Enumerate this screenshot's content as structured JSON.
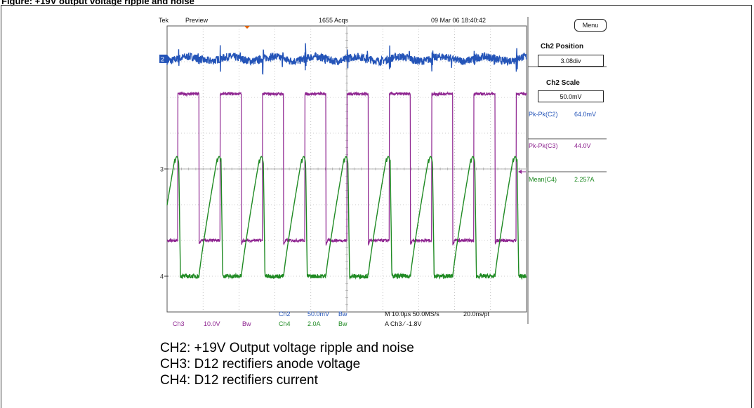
{
  "figure_title": "Figure: +19V output voltage ripple and noise",
  "header": {
    "brand": "Tek",
    "mode": "Preview",
    "acqs": "1655 Acqs",
    "datetime": "09 Mar 06 18:40:42"
  },
  "side_panel": {
    "menu_label": "Menu",
    "position_title": "Ch2 Position",
    "position_value": "3.08div",
    "scale_title": "Ch2 Scale",
    "scale_value": "50.0mV",
    "measurements": [
      {
        "label": "Pk-Pk(C2)",
        "value": "64.0mV"
      },
      {
        "label": "Pk-Pk(C3)",
        "value": "44.0V"
      },
      {
        "label": "Mean(C4)",
        "value": "2.257A"
      }
    ]
  },
  "bottom": {
    "ch3_name": "Ch3",
    "ch3_scale": "10.0V",
    "ch3_bw": "Bw",
    "ch2_name": "Ch2",
    "ch2_scale": "50.0mV",
    "ch2_bw": "Bw",
    "ch4_name": "Ch4",
    "ch4_scale": "2.0A",
    "ch4_bw": "Bw",
    "timebase": "M 10.0µs 50.0MS/s",
    "record": "20.0ns/pt",
    "trigger": "A  Ch3  ⁄  -1.8V"
  },
  "captions": [
    "CH2: +19V Output voltage ripple and noise",
    "CH3: D12 rectifiers anode voltage",
    "CH4: D12 rectifiers current"
  ],
  "colors": {
    "ch2": "#2454b8",
    "ch3": "#8e2490",
    "ch4": "#1f8a23",
    "grid": "#9a9a9a"
  },
  "chart_data": {
    "type": "line",
    "x_unit": "div",
    "xlim": [
      0,
      10
    ],
    "ylim": [
      -4,
      4
    ],
    "grid": true,
    "cycles": 8.5,
    "series": [
      {
        "name": "Ch2",
        "ground_marker": "2",
        "shape": "ripple",
        "level_div": 3.08
      },
      {
        "name": "Ch3",
        "ground_marker": "3",
        "shape": "square",
        "high_div": 2.1,
        "low_div": -2.0
      },
      {
        "name": "Ch4",
        "ground_marker": "4",
        "shape": "triangle-pulse",
        "peak_div": 0.3,
        "base_div": -3.0
      }
    ]
  }
}
